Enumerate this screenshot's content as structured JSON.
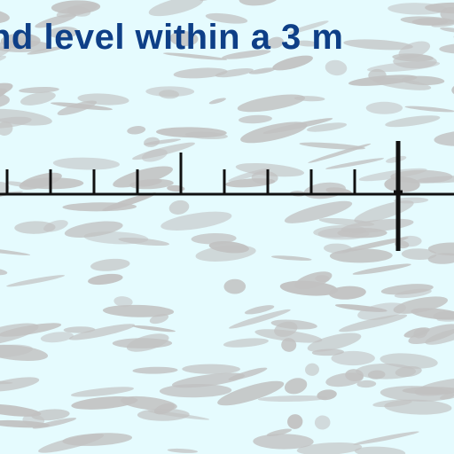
{
  "caption": {
    "text": "nd level within a 3 m"
  },
  "scale": {
    "minor_ticks_left_of_marker": 9,
    "major_tick_interval": 5,
    "marker": "heavy-vertical-marker"
  },
  "colors": {
    "background": "#e5fbfe",
    "blotches": "#c1c1c1",
    "caption_text": "#0e3f87",
    "line": "#111111"
  }
}
